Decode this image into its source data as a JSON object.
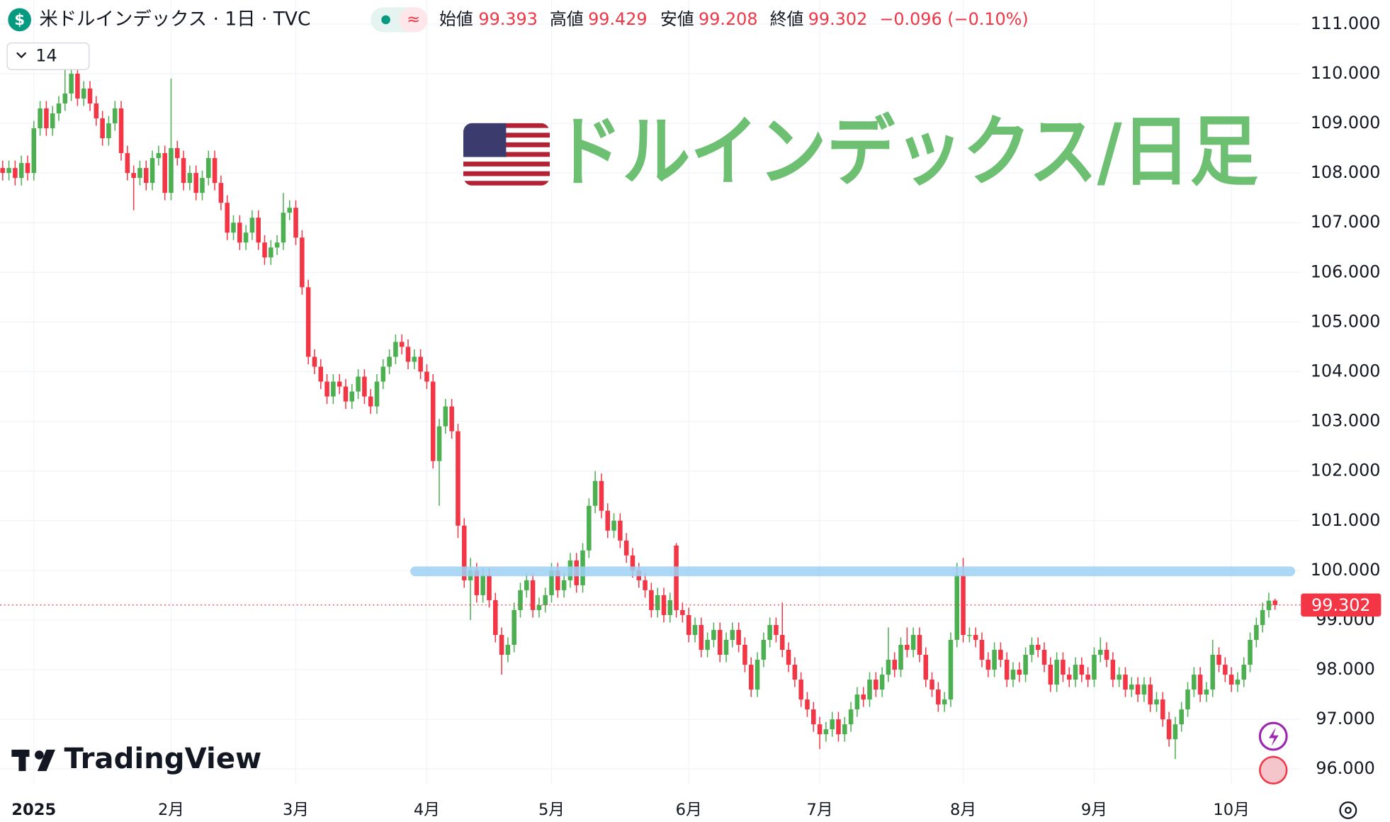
{
  "header": {
    "symbol_icon": "$",
    "title": "米ドルインデックス · 1日 · TVC",
    "badge": "≈",
    "open_label": "始値",
    "high_label": "高値",
    "low_label": "安値",
    "close_label": "終値",
    "change": "−0.096 (−0.10%)",
    "interval": "14"
  },
  "chart_data": {
    "type": "candlestick",
    "title": "ドルインデックス/日足",
    "watermark": "TradingView",
    "up_color": "#4caf50",
    "down_color": "#f23645",
    "level_color": "#9ed2f5",
    "grid": true,
    "ylim": [
      95.69,
      111.48
    ],
    "yticks": [
      {
        "value": 96,
        "label": "96.000"
      },
      {
        "value": 97,
        "label": "97.000"
      },
      {
        "value": 98,
        "label": "98.000"
      },
      {
        "value": 99,
        "label": "99.000"
      },
      {
        "value": 100,
        "label": "100.000"
      },
      {
        "value": 101,
        "label": "101.000"
      },
      {
        "value": 102,
        "label": "102.000"
      },
      {
        "value": 103,
        "label": "103.000"
      },
      {
        "value": 104,
        "label": "104.000"
      },
      {
        "value": 105,
        "label": "105.000"
      },
      {
        "value": 106,
        "label": "106.000"
      },
      {
        "value": 107,
        "label": "107.000"
      },
      {
        "value": 108,
        "label": "108.000"
      },
      {
        "value": 109,
        "label": "109.000"
      },
      {
        "value": 110,
        "label": "110.000"
      },
      {
        "value": 111,
        "label": "111.000"
      }
    ],
    "xticks": [
      {
        "value": 5,
        "label": "2025"
      },
      {
        "value": 27,
        "label": "2月"
      },
      {
        "value": 47,
        "label": "3月"
      },
      {
        "value": 68,
        "label": "4月"
      },
      {
        "value": 88,
        "label": "5月"
      },
      {
        "value": 110,
        "label": "6月"
      },
      {
        "value": 131,
        "label": "7月"
      },
      {
        "value": 154,
        "label": "8月"
      },
      {
        "value": 175,
        "label": "9月"
      },
      {
        "value": 197,
        "label": "10月"
      }
    ],
    "level": 99.98,
    "ohlc": [
      [
        108.1,
        108.25,
        107.85,
        108.0
      ],
      [
        108.0,
        108.25,
        107.85,
        108.1
      ],
      [
        108.1,
        108.25,
        107.75,
        107.9
      ],
      [
        107.9,
        108.35,
        107.75,
        108.2
      ],
      [
        108.2,
        108.35,
        107.85,
        108.0
      ],
      [
        108.0,
        109.05,
        107.85,
        108.9
      ],
      [
        108.9,
        109.45,
        108.75,
        109.3
      ],
      [
        109.3,
        109.45,
        108.75,
        108.9
      ],
      [
        108.9,
        109.35,
        108.75,
        109.2
      ],
      [
        109.2,
        109.55,
        109.05,
        109.4
      ],
      [
        109.4,
        110.2,
        109.25,
        109.6
      ],
      [
        109.6,
        110.15,
        109.45,
        110.0
      ],
      [
        110.0,
        110.15,
        109.35,
        109.5
      ],
      [
        109.5,
        109.85,
        109.35,
        109.7
      ],
      [
        109.7,
        109.85,
        109.25,
        109.4
      ],
      [
        109.4,
        109.55,
        108.95,
        109.1
      ],
      [
        109.1,
        109.25,
        108.55,
        108.7
      ],
      [
        108.7,
        109.15,
        108.55,
        109.0
      ],
      [
        109.0,
        109.45,
        108.85,
        109.3
      ],
      [
        109.3,
        109.45,
        108.25,
        108.4
      ],
      [
        108.4,
        108.55,
        107.85,
        108.0
      ],
      [
        108.0,
        108.15,
        107.25,
        107.9
      ],
      [
        107.9,
        108.25,
        107.75,
        108.1
      ],
      [
        108.1,
        108.25,
        107.65,
        107.8
      ],
      [
        107.8,
        108.45,
        107.65,
        108.3
      ],
      [
        108.3,
        108.55,
        108.15,
        108.4
      ],
      [
        108.4,
        108.55,
        107.45,
        107.6
      ],
      [
        107.6,
        109.9,
        107.45,
        108.5
      ],
      [
        108.5,
        108.65,
        108.15,
        108.3
      ],
      [
        108.3,
        108.45,
        107.65,
        107.8
      ],
      [
        107.8,
        108.15,
        107.65,
        108.0
      ],
      [
        108.0,
        108.15,
        107.45,
        107.6
      ],
      [
        107.6,
        108.05,
        107.45,
        107.9
      ],
      [
        107.9,
        108.45,
        107.75,
        108.3
      ],
      [
        108.3,
        108.45,
        107.65,
        107.8
      ],
      [
        107.8,
        107.95,
        107.25,
        107.4
      ],
      [
        107.4,
        107.55,
        106.65,
        106.8
      ],
      [
        106.8,
        107.15,
        106.65,
        107.0
      ],
      [
        107.0,
        107.15,
        106.45,
        106.6
      ],
      [
        106.6,
        106.95,
        106.45,
        106.8
      ],
      [
        106.8,
        107.25,
        106.65,
        107.1
      ],
      [
        107.1,
        107.25,
        106.45,
        106.6
      ],
      [
        106.6,
        106.75,
        106.15,
        106.3
      ],
      [
        106.3,
        106.65,
        106.15,
        106.5
      ],
      [
        106.5,
        106.75,
        106.35,
        106.6
      ],
      [
        106.6,
        107.6,
        106.45,
        107.2
      ],
      [
        107.2,
        107.45,
        107.05,
        107.3
      ],
      [
        107.3,
        107.45,
        106.55,
        106.7
      ],
      [
        106.7,
        106.85,
        105.55,
        105.7
      ],
      [
        105.7,
        105.85,
        104.15,
        104.3
      ],
      [
        104.3,
        104.45,
        103.95,
        104.1
      ],
      [
        104.1,
        104.25,
        103.65,
        103.8
      ],
      [
        103.8,
        103.95,
        103.35,
        103.5
      ],
      [
        103.5,
        103.95,
        103.35,
        103.8
      ],
      [
        103.8,
        103.95,
        103.55,
        103.7
      ],
      [
        103.7,
        103.85,
        103.25,
        103.4
      ],
      [
        103.4,
        103.75,
        103.25,
        103.6
      ],
      [
        103.6,
        104.05,
        103.45,
        103.9
      ],
      [
        103.9,
        104.05,
        103.35,
        103.5
      ],
      [
        103.5,
        103.65,
        103.15,
        103.3
      ],
      [
        103.3,
        103.95,
        103.15,
        103.8
      ],
      [
        103.8,
        104.25,
        103.65,
        104.1
      ],
      [
        104.1,
        104.45,
        103.95,
        104.3
      ],
      [
        104.3,
        104.75,
        104.15,
        104.6
      ],
      [
        104.6,
        104.75,
        104.35,
        104.5
      ],
      [
        104.5,
        104.65,
        104.05,
        104.2
      ],
      [
        104.2,
        104.45,
        104.05,
        104.3
      ],
      [
        104.3,
        104.45,
        103.85,
        104.0
      ],
      [
        104.0,
        104.15,
        103.65,
        103.8
      ],
      [
        103.8,
        103.95,
        102.05,
        102.2
      ],
      [
        102.2,
        103.05,
        101.3,
        102.9
      ],
      [
        102.9,
        103.45,
        102.75,
        103.3
      ],
      [
        103.3,
        103.45,
        102.65,
        102.8
      ],
      [
        102.8,
        102.95,
        100.65,
        100.9
      ],
      [
        100.9,
        101.05,
        99.65,
        99.8
      ],
      [
        99.8,
        100.25,
        99.0,
        100.0
      ],
      [
        100.0,
        100.15,
        99.35,
        99.5
      ],
      [
        99.5,
        100.05,
        99.35,
        99.9
      ],
      [
        99.9,
        100.05,
        99.25,
        99.4
      ],
      [
        99.4,
        99.55,
        98.55,
        98.7
      ],
      [
        98.7,
        98.85,
        97.9,
        98.3
      ],
      [
        98.3,
        98.65,
        98.15,
        98.5
      ],
      [
        98.5,
        99.35,
        98.35,
        99.2
      ],
      [
        99.2,
        99.75,
        99.05,
        99.6
      ],
      [
        99.6,
        99.95,
        99.45,
        99.8
      ],
      [
        99.8,
        99.95,
        99.05,
        99.2
      ],
      [
        99.2,
        99.45,
        99.05,
        99.3
      ],
      [
        99.3,
        99.65,
        99.15,
        99.5
      ],
      [
        99.5,
        100.15,
        99.35,
        100.0
      ],
      [
        100.0,
        100.15,
        99.45,
        99.6
      ],
      [
        99.6,
        99.95,
        99.45,
        99.8
      ],
      [
        99.8,
        100.35,
        99.65,
        100.2
      ],
      [
        100.2,
        100.35,
        99.55,
        99.7
      ],
      [
        99.7,
        100.55,
        99.55,
        100.4
      ],
      [
        100.4,
        101.45,
        100.25,
        101.3
      ],
      [
        101.3,
        102.0,
        101.15,
        101.8
      ],
      [
        101.8,
        101.95,
        101.05,
        101.2
      ],
      [
        101.2,
        101.35,
        100.65,
        100.8
      ],
      [
        100.8,
        101.15,
        100.65,
        101.0
      ],
      [
        101.0,
        101.15,
        100.45,
        100.6
      ],
      [
        100.6,
        100.75,
        100.15,
        100.3
      ],
      [
        100.3,
        100.45,
        99.85,
        100.0
      ],
      [
        100.0,
        100.15,
        99.65,
        99.8
      ],
      [
        99.8,
        99.95,
        99.45,
        99.6
      ],
      [
        99.6,
        99.75,
        99.05,
        99.2
      ],
      [
        99.2,
        99.65,
        99.05,
        99.5
      ],
      [
        99.5,
        99.65,
        98.95,
        99.1
      ],
      [
        99.1,
        99.55,
        98.95,
        99.4
      ],
      [
        100.5,
        100.55,
        99.05,
        99.2
      ],
      [
        99.2,
        99.35,
        98.95,
        99.1
      ],
      [
        99.1,
        99.25,
        98.55,
        98.7
      ],
      [
        98.7,
        99.05,
        98.55,
        98.9
      ],
      [
        98.9,
        99.05,
        98.25,
        98.4
      ],
      [
        98.4,
        98.75,
        98.25,
        98.6
      ],
      [
        98.6,
        98.95,
        98.45,
        98.8
      ],
      [
        98.8,
        98.95,
        98.15,
        98.3
      ],
      [
        98.3,
        98.75,
        98.15,
        98.6
      ],
      [
        98.6,
        98.95,
        98.45,
        98.8
      ],
      [
        98.8,
        98.95,
        98.35,
        98.5
      ],
      [
        98.5,
        98.65,
        97.95,
        98.1
      ],
      [
        98.1,
        98.25,
        97.45,
        97.6
      ],
      [
        97.6,
        98.35,
        97.45,
        98.2
      ],
      [
        98.2,
        98.75,
        98.05,
        98.6
      ],
      [
        98.6,
        99.05,
        98.45,
        98.9
      ],
      [
        98.9,
        99.05,
        98.55,
        98.7
      ],
      [
        98.7,
        99.35,
        98.25,
        98.4
      ],
      [
        98.4,
        98.55,
        97.95,
        98.1
      ],
      [
        98.1,
        98.25,
        97.65,
        97.8
      ],
      [
        97.8,
        97.95,
        97.25,
        97.4
      ],
      [
        97.4,
        97.55,
        97.05,
        97.2
      ],
      [
        97.2,
        97.35,
        96.75,
        96.9
      ],
      [
        96.9,
        97.05,
        96.4,
        96.7
      ],
      [
        96.7,
        96.95,
        96.55,
        96.8
      ],
      [
        96.8,
        97.15,
        96.65,
        97.0
      ],
      [
        97.0,
        97.15,
        96.55,
        96.7
      ],
      [
        96.7,
        97.05,
        96.55,
        96.9
      ],
      [
        96.9,
        97.35,
        96.75,
        97.2
      ],
      [
        97.2,
        97.65,
        97.05,
        97.5
      ],
      [
        97.5,
        97.65,
        97.25,
        97.4
      ],
      [
        97.4,
        97.95,
        97.25,
        97.8
      ],
      [
        97.8,
        97.95,
        97.45,
        97.6
      ],
      [
        97.6,
        98.05,
        97.45,
        97.9
      ],
      [
        97.9,
        98.85,
        97.75,
        98.2
      ],
      [
        98.2,
        98.35,
        97.85,
        98.0
      ],
      [
        98.0,
        98.65,
        97.85,
        98.5
      ],
      [
        98.5,
        98.85,
        98.25,
        98.4
      ],
      [
        98.4,
        98.85,
        98.25,
        98.7
      ],
      [
        98.7,
        98.85,
        98.15,
        98.3
      ],
      [
        98.3,
        98.45,
        97.65,
        97.8
      ],
      [
        97.8,
        97.95,
        97.45,
        97.6
      ],
      [
        97.6,
        97.75,
        97.15,
        97.3
      ],
      [
        97.3,
        97.55,
        97.15,
        97.4
      ],
      [
        97.4,
        98.75,
        97.25,
        98.6
      ],
      [
        98.6,
        100.15,
        98.45,
        99.9
      ],
      [
        99.9,
        100.25,
        98.55,
        98.7
      ],
      [
        98.7,
        98.85,
        98.55,
        98.7
      ],
      [
        98.7,
        98.85,
        98.45,
        98.6
      ],
      [
        98.6,
        98.75,
        98.05,
        98.2
      ],
      [
        98.2,
        98.35,
        97.85,
        98.0
      ],
      [
        98.0,
        98.55,
        97.85,
        98.4
      ],
      [
        98.4,
        98.55,
        98.05,
        98.2
      ],
      [
        98.2,
        98.35,
        97.65,
        97.8
      ],
      [
        97.8,
        98.15,
        97.65,
        98.0
      ],
      [
        98.0,
        98.15,
        97.75,
        97.9
      ],
      [
        97.9,
        98.45,
        97.75,
        98.3
      ],
      [
        98.3,
        98.65,
        98.15,
        98.5
      ],
      [
        98.5,
        98.65,
        98.25,
        98.4
      ],
      [
        98.4,
        98.55,
        97.95,
        98.1
      ],
      [
        98.1,
        98.25,
        97.55,
        97.7
      ],
      [
        97.7,
        98.35,
        97.55,
        98.2
      ],
      [
        98.2,
        98.35,
        97.75,
        97.9
      ],
      [
        97.9,
        98.05,
        97.65,
        97.8
      ],
      [
        97.8,
        98.25,
        97.65,
        98.1
      ],
      [
        98.1,
        98.25,
        97.75,
        97.9
      ],
      [
        97.9,
        98.05,
        97.65,
        97.8
      ],
      [
        97.8,
        98.45,
        97.65,
        98.3
      ],
      [
        98.3,
        98.65,
        98.15,
        98.4
      ],
      [
        98.4,
        98.55,
        98.05,
        98.2
      ],
      [
        98.2,
        98.35,
        97.65,
        97.8
      ],
      [
        97.8,
        98.05,
        97.65,
        97.9
      ],
      [
        97.9,
        98.05,
        97.45,
        97.6
      ],
      [
        97.6,
        97.85,
        97.45,
        97.7
      ],
      [
        97.7,
        97.85,
        97.35,
        97.5
      ],
      [
        97.5,
        97.85,
        97.35,
        97.7
      ],
      [
        97.7,
        97.85,
        97.15,
        97.3
      ],
      [
        97.3,
        97.55,
        97.15,
        97.4
      ],
      [
        97.4,
        97.55,
        96.85,
        97.0
      ],
      [
        97.0,
        97.15,
        96.45,
        96.6
      ],
      [
        96.6,
        97.05,
        96.2,
        96.9
      ],
      [
        96.9,
        97.35,
        96.75,
        97.2
      ],
      [
        97.2,
        97.75,
        97.05,
        97.6
      ],
      [
        97.6,
        98.05,
        97.45,
        97.9
      ],
      [
        97.9,
        98.05,
        97.35,
        97.5
      ],
      [
        97.5,
        97.75,
        97.35,
        97.6
      ],
      [
        97.6,
        98.6,
        97.45,
        98.3
      ],
      [
        98.3,
        98.45,
        97.95,
        98.1
      ],
      [
        98.1,
        98.25,
        97.75,
        97.9
      ],
      [
        97.9,
        98.05,
        97.55,
        97.7
      ],
      [
        97.7,
        97.95,
        97.55,
        97.8
      ],
      [
        97.8,
        98.25,
        97.65,
        98.1
      ],
      [
        98.1,
        98.75,
        97.95,
        98.6
      ],
      [
        98.6,
        99.05,
        98.45,
        98.9
      ],
      [
        98.9,
        99.35,
        98.75,
        99.2
      ],
      [
        99.2,
        99.55,
        99.05,
        99.39
      ],
      [
        99.393,
        99.429,
        99.208,
        99.302
      ]
    ]
  }
}
